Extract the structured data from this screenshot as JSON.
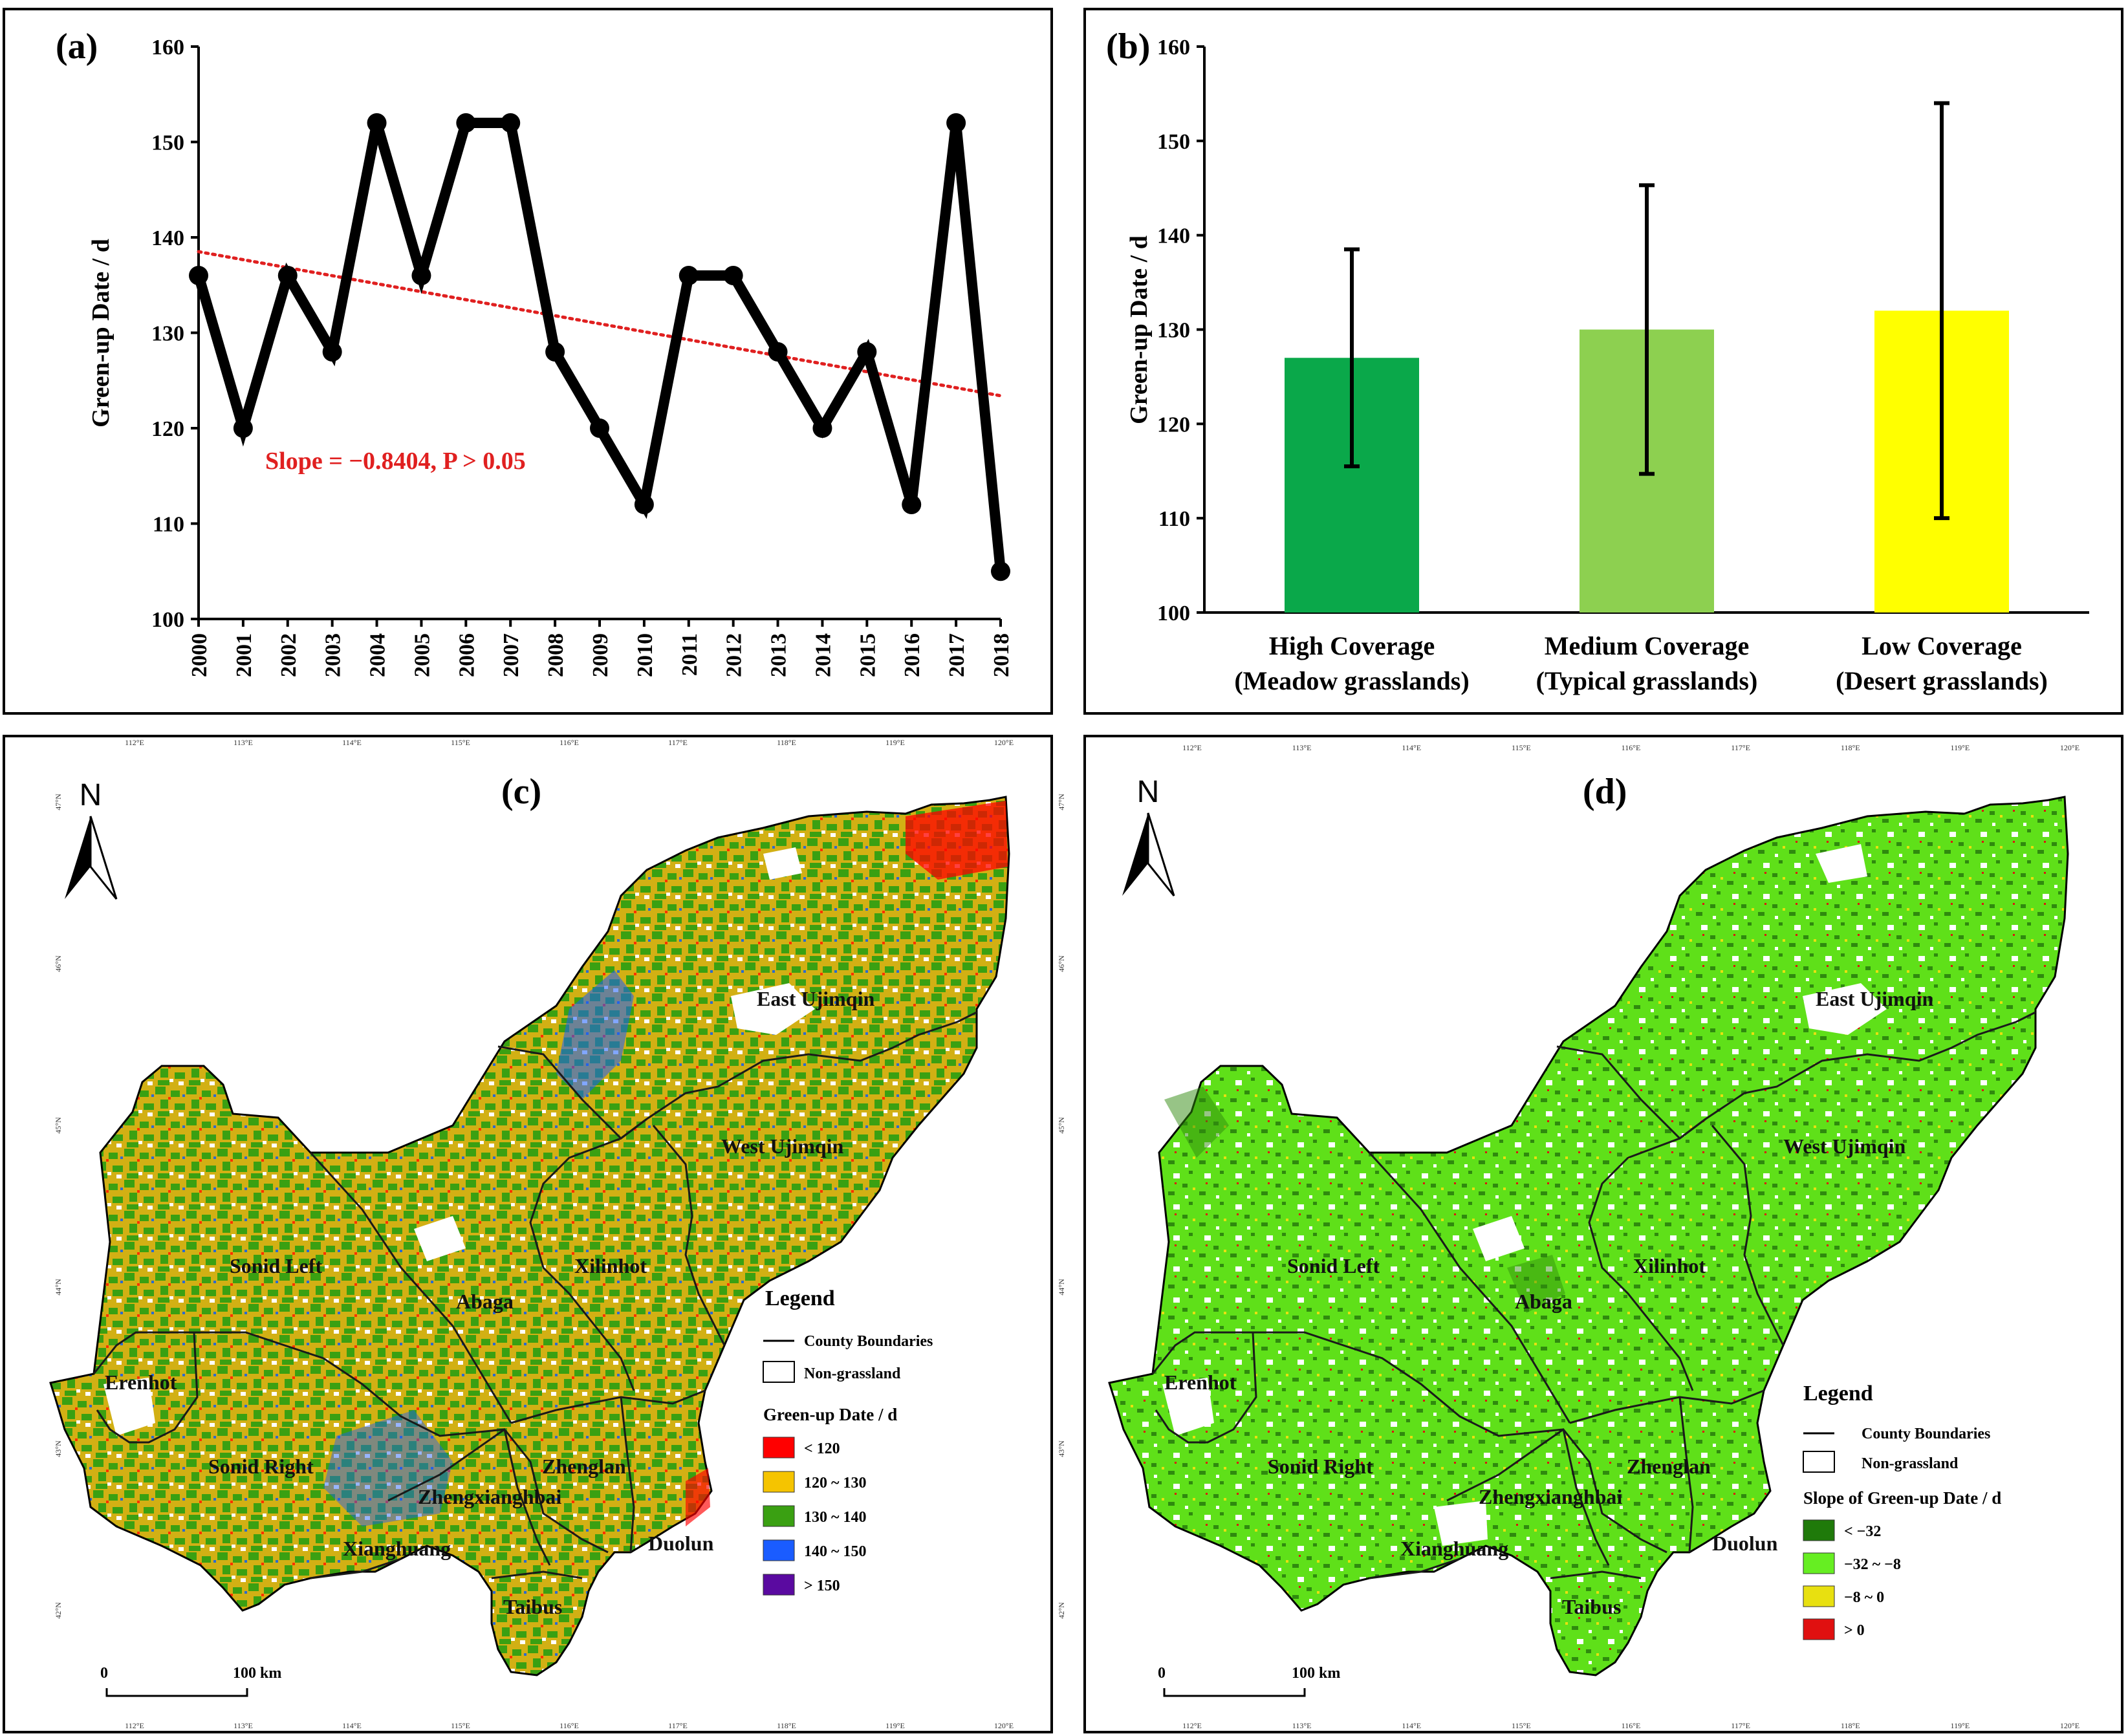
{
  "chart_data": [
    {
      "panel": "(a)",
      "type": "line",
      "x": [
        "2000",
        "2001",
        "2002",
        "2003",
        "2004",
        "2005",
        "2006",
        "2007",
        "2008",
        "2009",
        "2010",
        "2011",
        "2012",
        "2013",
        "2014",
        "2015",
        "2016",
        "2017",
        "2018"
      ],
      "values": [
        136,
        120,
        136,
        128,
        152,
        136,
        152,
        152,
        128,
        120,
        112,
        136,
        136,
        128,
        120,
        128,
        112,
        152,
        105
      ],
      "trend": {
        "start": 138.5,
        "end": 123.4,
        "color": "#e02020",
        "label": "Slope = −0.8404, P > 0.05"
      },
      "ylabel": "Green-up Date / d",
      "ylim": [
        100,
        160
      ],
      "yticks": [
        100,
        110,
        120,
        130,
        140,
        150,
        160
      ]
    },
    {
      "panel": "(b)",
      "type": "bar",
      "categories": [
        {
          "line1": "High Coverage",
          "line2": "(Meadow grasslands)"
        },
        {
          "line1": "Medium Coverage",
          "line2": "(Typical grasslands)"
        },
        {
          "line1": "Low Coverage",
          "line2": "(Desert grasslands)"
        }
      ],
      "values": [
        127,
        130,
        132
      ],
      "error_low": [
        115.5,
        114.7,
        110
      ],
      "error_high": [
        138.5,
        145.3,
        154
      ],
      "colors": [
        "#0aa84a",
        "#8dd050",
        "#ffff00"
      ],
      "ylabel": "Green-up Date / d",
      "ylim": [
        100,
        160
      ],
      "yticks": [
        100,
        110,
        120,
        130,
        140,
        150,
        160
      ]
    }
  ],
  "maps": {
    "c": {
      "label": "(c)",
      "north": "N",
      "scale_labels": [
        "0",
        "100 km"
      ],
      "legend": {
        "title": "Legend",
        "boundary_label": "County Boundaries",
        "nongrass_label": "Non-grassland",
        "subtitle": "Green-up Date / d",
        "classes": [
          {
            "label": "< 120",
            "color": "#ff0000"
          },
          {
            "label": "120 ~ 130",
            "color": "#f5c400"
          },
          {
            "label": "130 ~ 140",
            "color": "#3aa012"
          },
          {
            "label": "140 ~ 150",
            "color": "#1a5cff"
          },
          {
            "label": "> 150",
            "color": "#5a0aa0"
          }
        ]
      }
    },
    "d": {
      "label": "(d)",
      "north": "N",
      "scale_labels": [
        "0",
        "100 km"
      ],
      "legend": {
        "title": "Legend",
        "boundary_label": "County Boundaries",
        "nongrass_label": "Non-grassland",
        "subtitle": "Slope of Green-up Date / d",
        "classes": [
          {
            "label": "< −32",
            "color": "#1f7a0a"
          },
          {
            "label": "−32 ~ −8",
            "color": "#66ee22"
          },
          {
            "label": "−8 ~ 0",
            "color": "#e8e010"
          },
          {
            "label": "> 0",
            "color": "#e01010"
          }
        ]
      }
    },
    "counties": [
      "East Ujimqin",
      "West Ujimqin",
      "Sonid Left",
      "Abaga",
      "Xilinhot",
      "Erenhot",
      "Sonid Right",
      "Zhengxianghbai",
      "Zhenglan",
      "Xianghuang",
      "Duolun",
      "Taibus"
    ],
    "lon_labels": [
      "112°E",
      "113°E",
      "114°E",
      "115°E",
      "116°E",
      "117°E",
      "118°E",
      "119°E",
      "120°E"
    ],
    "lat_labels": [
      "47°N",
      "46°N",
      "45°N",
      "44°N",
      "43°N",
      "42°N"
    ]
  }
}
